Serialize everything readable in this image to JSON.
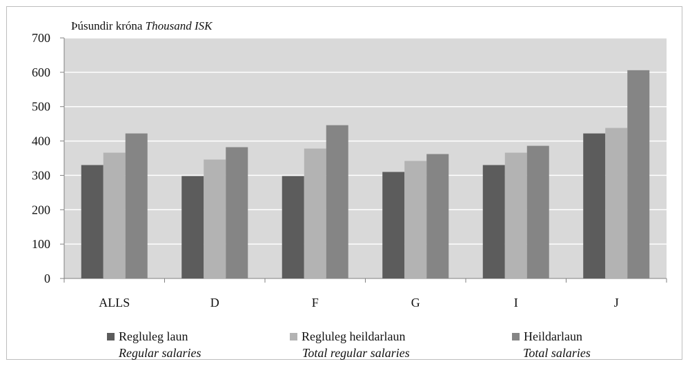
{
  "unit_label": {
    "is": "Þúsundir króna",
    "en": "Thousand ISK"
  },
  "chart_data": {
    "type": "bar",
    "categories": [
      "ALLS",
      "D",
      "F",
      "G",
      "I",
      "J"
    ],
    "series": [
      {
        "name": "Regluleg laun",
        "name_en": "Regular salaries",
        "color": "#5c5c5c",
        "values": [
          330,
          298,
          298,
          310,
          330,
          422
        ]
      },
      {
        "name": "Regluleg heildarlaun",
        "name_en": "Total regular salaries",
        "color": "#b3b3b3",
        "values": [
          366,
          346,
          378,
          342,
          366,
          438
        ]
      },
      {
        "name": "Heildarlaun",
        "name_en": "Total salaries",
        "color": "#858585",
        "values": [
          422,
          382,
          446,
          362,
          386,
          606
        ]
      }
    ],
    "ylim": [
      0,
      700
    ],
    "yticks": [
      0,
      100,
      200,
      300,
      400,
      500,
      600,
      700
    ],
    "grid": true,
    "legend": "bottom",
    "plot_background": "#d9d9d9"
  }
}
